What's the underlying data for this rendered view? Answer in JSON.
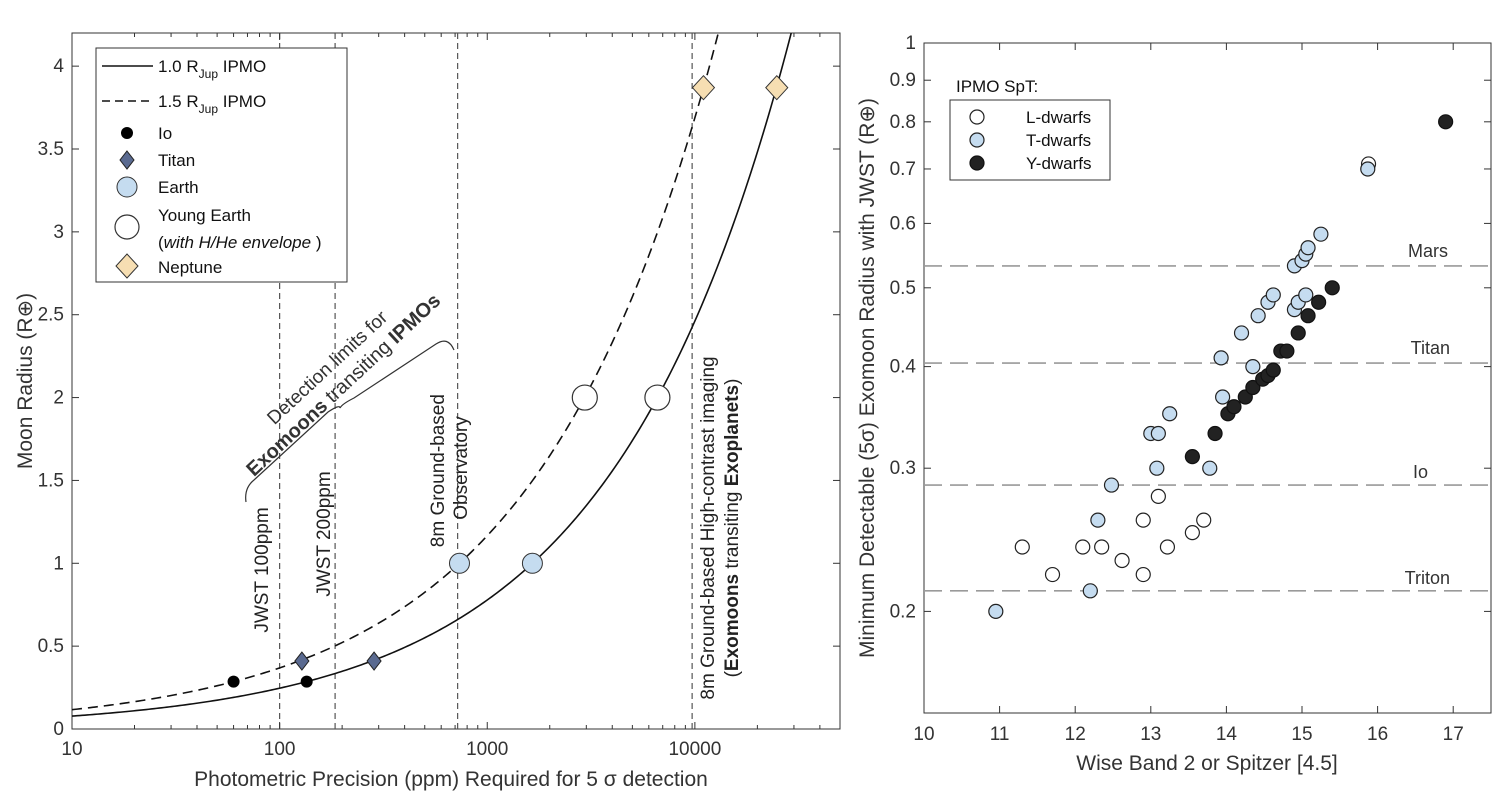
{
  "chart_data": [
    {
      "type": "line",
      "xscale": "log",
      "xlim": [
        10,
        50000
      ],
      "ylim": [
        0,
        4.2
      ],
      "xlabel": "Photometric Precision (ppm) Required for 5 σ detection",
      "ylabel": "Moon Radius (R⊕)",
      "x_ticks": [
        {
          "value": 10,
          "label": "10"
        },
        {
          "value": 100,
          "label": "100"
        },
        {
          "value": 1000,
          "label": "1000"
        },
        {
          "value": 10000,
          "label": "10000"
        }
      ],
      "y_ticks": [
        {
          "value": 0,
          "label": "0"
        },
        {
          "value": 0.5,
          "label": "0.5"
        },
        {
          "value": 1,
          "label": "1"
        },
        {
          "value": 1.5,
          "label": "1.5"
        },
        {
          "value": 2,
          "label": "2"
        },
        {
          "value": 2.5,
          "label": "2.5"
        },
        {
          "value": 3,
          "label": "3"
        },
        {
          "value": 3.5,
          "label": "3.5"
        },
        {
          "value": 4,
          "label": "4"
        }
      ],
      "curves": [
        {
          "name": "1.0 R_Jup IPMO",
          "style": "solid",
          "depth_per_R2_ppm": 1650
        },
        {
          "name": "1.5 R_Jup IPMO",
          "style": "dashed",
          "depth_per_R2_ppm": 735
        }
      ],
      "points": [
        {
          "body": "Io",
          "x": 60,
          "y": 0.286
        },
        {
          "body": "Io",
          "x": 135,
          "y": 0.286
        },
        {
          "body": "Titan",
          "x": 128,
          "y": 0.41
        },
        {
          "body": "Titan",
          "x": 285,
          "y": 0.41
        },
        {
          "body": "Earth",
          "x": 735,
          "y": 1.0
        },
        {
          "body": "Earth",
          "x": 1650,
          "y": 1.0
        },
        {
          "body": "Young Earth",
          "x": 2950,
          "y": 2.0
        },
        {
          "body": "Young Earth",
          "x": 6600,
          "y": 2.0
        },
        {
          "body": "Neptune",
          "x": 11000,
          "y": 3.87
        },
        {
          "body": "Neptune",
          "x": 24800,
          "y": 3.87
        }
      ],
      "legend": [
        {
          "key": "solid",
          "label": "1.0 R",
          "sub": "Jup",
          "suffix": " IPMO"
        },
        {
          "key": "dashed",
          "label": "1.5 R",
          "sub": "Jup",
          "suffix": " IPMO"
        },
        {
          "key": "Io",
          "label": "Io"
        },
        {
          "key": "Titan",
          "label": "Titan"
        },
        {
          "key": "Earth",
          "label": "Earth"
        },
        {
          "key": "Young Earth",
          "label": "Young Earth",
          "label2_open": "(",
          "label2_italic": "with H/He envelope",
          "label2_close": " )"
        },
        {
          "key": "Neptune",
          "label": "Neptune"
        }
      ],
      "vlines": [
        {
          "x": 100,
          "label": "JWST 100ppm"
        },
        {
          "x": 185,
          "label": "JWST 200ppm"
        },
        {
          "x": 720,
          "label_line1": "8m Ground-based",
          "label_line2": "Observatory"
        },
        {
          "x": 9700,
          "label_line1": "8m Ground-based High-contrast imaging",
          "label2_a": "(",
          "label2_b": "Exomoons",
          "label2_c": " transiting ",
          "label2_d": "Exoplanets",
          "label2_e": ")"
        }
      ],
      "annotation": {
        "line1": "Detection limits for",
        "line2_a": "Exomoons",
        "line2_b": " transiting ",
        "line2_c": "IPMOs"
      }
    },
    {
      "type": "scatter",
      "yscale": "log",
      "xlim": [
        10,
        17.5
      ],
      "ylim": [
        0.15,
        1
      ],
      "xlabel": "Wise Band 2 or Spitzer [4.5]",
      "ylabel": "Minimum Detectable (5σ) Exomoon Radius with JWST (R⊕)",
      "x_ticks": [
        {
          "value": 10,
          "label": "10"
        },
        {
          "value": 11,
          "label": "11"
        },
        {
          "value": 12,
          "label": "12"
        },
        {
          "value": 13,
          "label": "13"
        },
        {
          "value": 14,
          "label": "14"
        },
        {
          "value": 15,
          "label": "15"
        },
        {
          "value": 16,
          "label": "16"
        },
        {
          "value": 17,
          "label": "17"
        }
      ],
      "y_ticks": [
        {
          "value": 0.2,
          "label": "0.2"
        },
        {
          "value": 0.3,
          "label": "0.3"
        },
        {
          "value": 0.4,
          "label": "0.4"
        },
        {
          "value": 0.5,
          "label": "0.5"
        },
        {
          "value": 0.6,
          "label": "0.6"
        },
        {
          "value": 0.7,
          "label": "0.7"
        },
        {
          "value": 0.8,
          "label": "0.8"
        },
        {
          "value": 0.9,
          "label": "0.9"
        },
        {
          "value": 1,
          "label": "1"
        }
      ],
      "reference_lines": [
        {
          "name": "Mars",
          "y": 0.532
        },
        {
          "name": "Titan",
          "y": 0.404
        },
        {
          "name": "Io",
          "y": 0.286
        },
        {
          "name": "Triton",
          "y": 0.212
        }
      ],
      "legend_title": "IPMO SpT:",
      "series": [
        {
          "name": "L-dwarfs",
          "points": [
            [
              11.3,
              0.24
            ],
            [
              11.7,
              0.222
            ],
            [
              12.1,
              0.24
            ],
            [
              12.35,
              0.24
            ],
            [
              12.62,
              0.231
            ],
            [
              12.9,
              0.259
            ],
            [
              12.9,
              0.222
            ],
            [
              13.1,
              0.277
            ],
            [
              13.22,
              0.24
            ],
            [
              13.55,
              0.25
            ],
            [
              13.7,
              0.259
            ],
            [
              15.88,
              0.71
            ]
          ]
        },
        {
          "name": "T-dwarfs",
          "points": [
            [
              10.95,
              0.2
            ],
            [
              12.2,
              0.212
            ],
            [
              12.3,
              0.259
            ],
            [
              12.48,
              0.286
            ],
            [
              13.0,
              0.331
            ],
            [
              13.1,
              0.331
            ],
            [
              13.08,
              0.3
            ],
            [
              13.25,
              0.35
            ],
            [
              13.78,
              0.3
            ],
            [
              13.93,
              0.41
            ],
            [
              13.95,
              0.367
            ],
            [
              14.2,
              0.44
            ],
            [
              14.35,
              0.4
            ],
            [
              14.42,
              0.462
            ],
            [
              14.55,
              0.48
            ],
            [
              14.62,
              0.49
            ],
            [
              14.9,
              0.47
            ],
            [
              14.9,
              0.532
            ],
            [
              14.95,
              0.48
            ],
            [
              15.0,
              0.54
            ],
            [
              15.05,
              0.49
            ],
            [
              15.05,
              0.55
            ],
            [
              15.08,
              0.56
            ],
            [
              15.25,
              0.582
            ],
            [
              15.87,
              0.7
            ]
          ]
        },
        {
          "name": "Y-dwarfs",
          "points": [
            [
              13.55,
              0.31
            ],
            [
              13.85,
              0.331
            ],
            [
              14.02,
              0.35
            ],
            [
              14.1,
              0.357
            ],
            [
              14.25,
              0.367
            ],
            [
              14.35,
              0.377
            ],
            [
              14.48,
              0.386
            ],
            [
              14.55,
              0.39
            ],
            [
              14.62,
              0.396
            ],
            [
              14.72,
              0.418
            ],
            [
              14.8,
              0.418
            ],
            [
              14.95,
              0.44
            ],
            [
              15.08,
              0.462
            ],
            [
              15.22,
              0.48
            ],
            [
              15.4,
              0.5
            ],
            [
              16.9,
              0.8
            ]
          ]
        }
      ]
    }
  ]
}
